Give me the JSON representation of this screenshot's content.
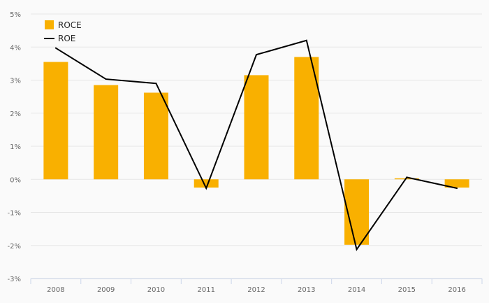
{
  "chart_data": {
    "type": "bar",
    "categories": [
      "2008",
      "2009",
      "2010",
      "2011",
      "2012",
      "2013",
      "2014",
      "2015",
      "2016"
    ],
    "series": [
      {
        "name": "ROCE",
        "type": "bar",
        "color": "#f9b000",
        "values": [
          3.55,
          2.85,
          2.62,
          -0.25,
          3.15,
          3.7,
          -1.98,
          0.03,
          -0.25
        ]
      },
      {
        "name": "ROE",
        "type": "line",
        "color": "#000000",
        "values": [
          3.97,
          3.03,
          2.9,
          -0.27,
          3.77,
          4.2,
          -2.12,
          0.06,
          -0.27
        ]
      }
    ],
    "ylim": [
      -3,
      5
    ],
    "y_ticks": [
      "-3%",
      "-2%",
      "-1%",
      "0%",
      "1%",
      "2%",
      "3%",
      "4%",
      "5%"
    ],
    "y_tick_values": [
      -3,
      -2,
      -1,
      0,
      1,
      2,
      3,
      4,
      5
    ],
    "grid": true,
    "legend_position": "top-left"
  }
}
